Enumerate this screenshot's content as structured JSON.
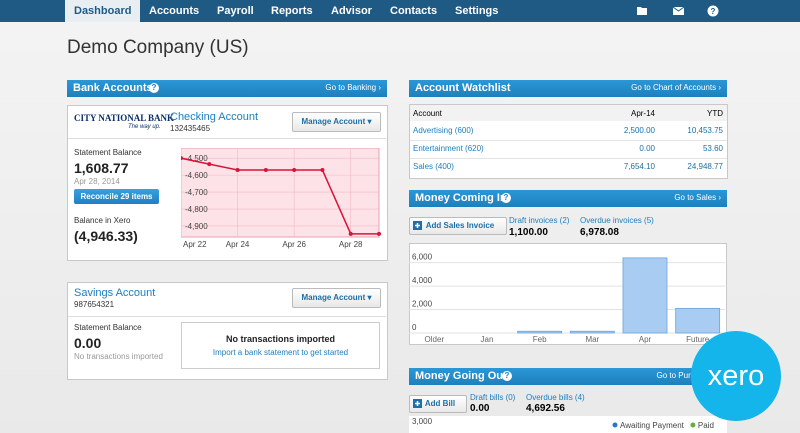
{
  "nav": {
    "tabs": [
      "Dashboard",
      "Accounts",
      "Payroll",
      "Reports",
      "Advisor",
      "Contacts",
      "Settings"
    ]
  },
  "page_title": "Demo Company (US)",
  "help_icon": "?",
  "bank_accounts": {
    "title": "Bank Accounts",
    "link": "Go to Banking ›",
    "checking": {
      "bank_logo": "CITY NATIONAL BANK",
      "bank_tagline": "The way up.",
      "name": "Checking Account",
      "number": "132435465",
      "manage_button": "Manage Account ▾",
      "statement_label": "Statement Balance",
      "statement_balance": "1,608.77",
      "statement_date": "Apr 28, 2014",
      "reconcile_button": "Reconcile 29 items",
      "xero_label": "Balance in Xero",
      "xero_balance": "(4,946.33)",
      "chart": {
        "type": "line",
        "categories": [
          "Apr 22",
          null,
          "Apr 24",
          null,
          "Apr 26",
          null,
          "Apr 28",
          null
        ],
        "values": [
          -4500,
          -4535,
          -4570,
          -4570,
          -4570,
          -4570,
          -4946.33,
          -4946.33
        ],
        "color": "#d9143a",
        "ylim": [
          -4965,
          -4440
        ],
        "yticks": [
          {
            "value": -4500,
            "label": "-4,500"
          },
          {
            "value": -4600,
            "label": "-4,600"
          },
          {
            "value": -4700,
            "label": "-4,700"
          },
          {
            "value": -4800,
            "label": "-4,800"
          },
          {
            "value": -4900,
            "label": "-4,900"
          }
        ],
        "grid": true
      }
    },
    "savings": {
      "name": "Savings Account",
      "number": "987654321",
      "manage_button": "Manage Account ▾",
      "statement_label": "Statement Balance",
      "statement_balance": "0.00",
      "status": "No transactions imported",
      "empty_title": "No transactions imported",
      "empty_link": "Import a bank statement to get started"
    }
  },
  "watchlist": {
    "title": "Account Watchlist",
    "link": "Go to Chart of Accounts ›",
    "columns": [
      "Account",
      "Apr-14",
      "YTD"
    ],
    "rows": [
      [
        "Advertising (600)",
        "2,500.00",
        "10,453.75"
      ],
      [
        "Entertainment (620)",
        "0.00",
        "53.60"
      ],
      [
        "Sales (400)",
        "7,654.10",
        "24,948.77"
      ]
    ]
  },
  "money_in": {
    "title": "Money Coming In",
    "link": "Go to Sales ›",
    "button": "Add Sales Invoice",
    "draft_label": "Draft invoices (2)",
    "draft_value": "1,100.00",
    "overdue_label": "Overdue invoices (5)",
    "overdue_value": "6,978.08",
    "chart": {
      "type": "bar",
      "categories": [
        "Older",
        "Jan",
        "Feb",
        "Mar",
        "Apr",
        "Future"
      ],
      "values": [
        0,
        0,
        150,
        150,
        6400,
        2100
      ],
      "color": "#a9cdf2",
      "ylim": [
        0,
        7500
      ],
      "yticks": [
        0,
        {
          "value": 2000,
          "label": "2,000"
        },
        {
          "value": 4000,
          "label": "4,000"
        },
        {
          "value": 6000,
          "label": "6,000"
        }
      ],
      "grid": true
    }
  },
  "money_out": {
    "title": "Money Going Out",
    "link": "Go to Purchases ›",
    "button": "Add Bill",
    "draft_label": "Draft bills (0)",
    "draft_value": "0.00",
    "overdue_label": "Overdue bills (4)",
    "overdue_value": "4,692.56",
    "chart": {
      "type": "bar",
      "yticks": [
        {
          "value": 3000,
          "label": "3,000"
        }
      ],
      "series": [
        {
          "name": "Awaiting Payment",
          "color": "#2a78c8"
        },
        {
          "name": "Paid",
          "color": "#6aad3d"
        }
      ]
    }
  },
  "logo": "xero"
}
